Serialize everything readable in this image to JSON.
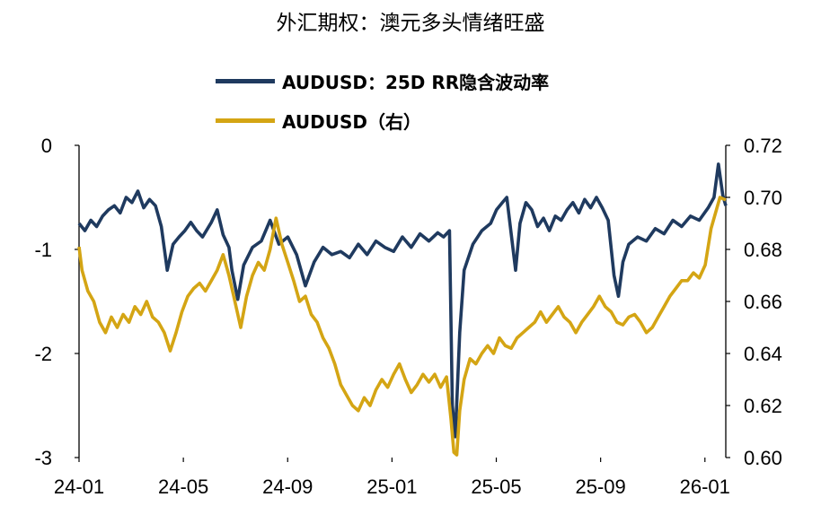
{
  "title": "外汇期权：澳元多头情绪旺盛",
  "legend": [
    {
      "label": "AUDUSD：25D RR隐含波动率",
      "color": "#1F3A5F"
    },
    {
      "label": "AUDUSD（右）",
      "color": "#D4A514"
    }
  ],
  "chart_data": {
    "type": "line",
    "left_axis": {
      "ticks": [
        "0",
        "-1",
        "-2",
        "-3"
      ],
      "ylim": [
        -3,
        0
      ]
    },
    "right_axis": {
      "ticks": [
        "0.72",
        "0.70",
        "0.68",
        "0.66",
        "0.64",
        "0.62",
        "0.60"
      ],
      "ylim": [
        0.6,
        0.72
      ]
    },
    "x_ticks": [
      "24-01",
      "24-05",
      "24-09",
      "25-01",
      "25-05",
      "25-09",
      "26-01"
    ],
    "series": [
      {
        "name": "AUDUSD：25D RR隐含波动率",
        "axis": "left",
        "color": "#1F3A5F",
        "points": [
          [
            0.0,
            -0.75
          ],
          [
            0.2,
            -0.82
          ],
          [
            0.4,
            -0.72
          ],
          [
            0.6,
            -0.78
          ],
          [
            0.8,
            -0.68
          ],
          [
            1.0,
            -0.62
          ],
          [
            1.2,
            -0.58
          ],
          [
            1.4,
            -0.65
          ],
          [
            1.6,
            -0.5
          ],
          [
            1.8,
            -0.55
          ],
          [
            2.0,
            -0.44
          ],
          [
            2.2,
            -0.6
          ],
          [
            2.4,
            -0.52
          ],
          [
            2.6,
            -0.58
          ],
          [
            2.8,
            -0.78
          ],
          [
            3.0,
            -1.2
          ],
          [
            3.2,
            -0.95
          ],
          [
            3.4,
            -0.88
          ],
          [
            3.6,
            -0.82
          ],
          [
            3.8,
            -0.74
          ],
          [
            4.0,
            -0.82
          ],
          [
            4.2,
            -0.88
          ],
          [
            4.5,
            -0.74
          ],
          [
            4.7,
            -0.62
          ],
          [
            4.9,
            -0.86
          ],
          [
            5.1,
            -0.98
          ],
          [
            5.2,
            -1.2
          ],
          [
            5.4,
            -1.48
          ],
          [
            5.6,
            -1.15
          ],
          [
            5.9,
            -0.98
          ],
          [
            6.2,
            -0.92
          ],
          [
            6.5,
            -0.72
          ],
          [
            6.8,
            -0.95
          ],
          [
            7.1,
            -0.88
          ],
          [
            7.4,
            -1.05
          ],
          [
            7.7,
            -1.35
          ],
          [
            8.0,
            -1.12
          ],
          [
            8.3,
            -0.98
          ],
          [
            8.6,
            -1.05
          ],
          [
            8.9,
            -1.02
          ],
          [
            9.2,
            -1.08
          ],
          [
            9.5,
            -0.95
          ],
          [
            9.8,
            -1.05
          ],
          [
            10.1,
            -0.92
          ],
          [
            10.4,
            -0.98
          ],
          [
            10.7,
            -1.02
          ],
          [
            11.0,
            -0.88
          ],
          [
            11.3,
            -0.98
          ],
          [
            11.6,
            -0.85
          ],
          [
            11.9,
            -0.92
          ],
          [
            12.2,
            -0.84
          ],
          [
            12.4,
            -0.88
          ],
          [
            12.6,
            -0.82
          ],
          [
            12.7,
            -2.5
          ],
          [
            12.8,
            -2.8
          ],
          [
            12.95,
            -1.8
          ],
          [
            13.1,
            -1.2
          ],
          [
            13.4,
            -0.95
          ],
          [
            13.7,
            -0.82
          ],
          [
            14.0,
            -0.75
          ],
          [
            14.2,
            -0.62
          ],
          [
            14.4,
            -0.55
          ],
          [
            14.55,
            -0.5
          ],
          [
            14.7,
            -0.85
          ],
          [
            14.85,
            -1.2
          ],
          [
            15.0,
            -0.75
          ],
          [
            15.2,
            -0.55
          ],
          [
            15.4,
            -0.62
          ],
          [
            15.6,
            -0.78
          ],
          [
            15.8,
            -0.7
          ],
          [
            16.0,
            -0.82
          ],
          [
            16.2,
            -0.68
          ],
          [
            16.4,
            -0.72
          ],
          [
            16.6,
            -0.62
          ],
          [
            16.8,
            -0.55
          ],
          [
            17.0,
            -0.65
          ],
          [
            17.2,
            -0.52
          ],
          [
            17.4,
            -0.6
          ],
          [
            17.6,
            -0.5
          ],
          [
            17.8,
            -0.6
          ],
          [
            18.0,
            -0.72
          ],
          [
            18.2,
            -1.25
          ],
          [
            18.35,
            -1.45
          ],
          [
            18.5,
            -1.12
          ],
          [
            18.7,
            -0.95
          ],
          [
            19.0,
            -0.88
          ],
          [
            19.3,
            -0.92
          ],
          [
            19.6,
            -0.8
          ],
          [
            19.9,
            -0.85
          ],
          [
            20.2,
            -0.72
          ],
          [
            20.5,
            -0.78
          ],
          [
            20.8,
            -0.68
          ],
          [
            21.1,
            -0.72
          ],
          [
            21.4,
            -0.6
          ],
          [
            21.6,
            -0.5
          ],
          [
            21.75,
            -0.18
          ],
          [
            21.9,
            -0.48
          ],
          [
            22.0,
            -0.58
          ]
        ]
      },
      {
        "name": "AUDUSD（右）",
        "axis": "right",
        "color": "#D4A514",
        "points": [
          [
            0.0,
            0.681
          ],
          [
            0.1,
            0.672
          ],
          [
            0.3,
            0.664
          ],
          [
            0.5,
            0.66
          ],
          [
            0.7,
            0.652
          ],
          [
            0.9,
            0.648
          ],
          [
            1.1,
            0.654
          ],
          [
            1.3,
            0.65
          ],
          [
            1.5,
            0.655
          ],
          [
            1.7,
            0.652
          ],
          [
            1.9,
            0.658
          ],
          [
            2.1,
            0.655
          ],
          [
            2.3,
            0.66
          ],
          [
            2.5,
            0.654
          ],
          [
            2.7,
            0.652
          ],
          [
            2.9,
            0.648
          ],
          [
            3.1,
            0.641
          ],
          [
            3.3,
            0.648
          ],
          [
            3.5,
            0.656
          ],
          [
            3.7,
            0.662
          ],
          [
            3.9,
            0.665
          ],
          [
            4.1,
            0.667
          ],
          [
            4.3,
            0.664
          ],
          [
            4.5,
            0.668
          ],
          [
            4.7,
            0.672
          ],
          [
            4.9,
            0.678
          ],
          [
            5.1,
            0.67
          ],
          [
            5.3,
            0.66
          ],
          [
            5.5,
            0.65
          ],
          [
            5.7,
            0.662
          ],
          [
            5.9,
            0.67
          ],
          [
            6.1,
            0.675
          ],
          [
            6.3,
            0.672
          ],
          [
            6.5,
            0.68
          ],
          [
            6.7,
            0.692
          ],
          [
            6.9,
            0.682
          ],
          [
            7.1,
            0.675
          ],
          [
            7.3,
            0.668
          ],
          [
            7.5,
            0.66
          ],
          [
            7.7,
            0.662
          ],
          [
            7.9,
            0.655
          ],
          [
            8.1,
            0.652
          ],
          [
            8.3,
            0.646
          ],
          [
            8.5,
            0.642
          ],
          [
            8.7,
            0.636
          ],
          [
            8.9,
            0.628
          ],
          [
            9.1,
            0.624
          ],
          [
            9.3,
            0.62
          ],
          [
            9.5,
            0.618
          ],
          [
            9.7,
            0.623
          ],
          [
            9.9,
            0.62
          ],
          [
            10.1,
            0.626
          ],
          [
            10.3,
            0.63
          ],
          [
            10.5,
            0.627
          ],
          [
            10.7,
            0.632
          ],
          [
            10.9,
            0.636
          ],
          [
            11.1,
            0.63
          ],
          [
            11.3,
            0.625
          ],
          [
            11.5,
            0.628
          ],
          [
            11.7,
            0.632
          ],
          [
            11.9,
            0.629
          ],
          [
            12.1,
            0.632
          ],
          [
            12.3,
            0.627
          ],
          [
            12.5,
            0.631
          ],
          [
            12.65,
            0.615
          ],
          [
            12.75,
            0.602
          ],
          [
            12.85,
            0.601
          ],
          [
            12.95,
            0.618
          ],
          [
            13.1,
            0.63
          ],
          [
            13.3,
            0.638
          ],
          [
            13.5,
            0.636
          ],
          [
            13.7,
            0.64
          ],
          [
            13.9,
            0.643
          ],
          [
            14.1,
            0.64
          ],
          [
            14.3,
            0.646
          ],
          [
            14.5,
            0.643
          ],
          [
            14.7,
            0.642
          ],
          [
            14.9,
            0.646
          ],
          [
            15.1,
            0.648
          ],
          [
            15.3,
            0.65
          ],
          [
            15.5,
            0.652
          ],
          [
            15.7,
            0.656
          ],
          [
            15.9,
            0.652
          ],
          [
            16.1,
            0.655
          ],
          [
            16.3,
            0.658
          ],
          [
            16.5,
            0.654
          ],
          [
            16.7,
            0.652
          ],
          [
            16.9,
            0.648
          ],
          [
            17.1,
            0.652
          ],
          [
            17.3,
            0.655
          ],
          [
            17.5,
            0.658
          ],
          [
            17.7,
            0.662
          ],
          [
            17.9,
            0.658
          ],
          [
            18.1,
            0.656
          ],
          [
            18.3,
            0.652
          ],
          [
            18.5,
            0.651
          ],
          [
            18.7,
            0.654
          ],
          [
            18.9,
            0.655
          ],
          [
            19.1,
            0.652
          ],
          [
            19.3,
            0.648
          ],
          [
            19.5,
            0.65
          ],
          [
            19.7,
            0.654
          ],
          [
            19.9,
            0.658
          ],
          [
            20.1,
            0.662
          ],
          [
            20.3,
            0.665
          ],
          [
            20.5,
            0.668
          ],
          [
            20.7,
            0.668
          ],
          [
            20.9,
            0.671
          ],
          [
            21.1,
            0.669
          ],
          [
            21.3,
            0.674
          ],
          [
            21.5,
            0.688
          ],
          [
            21.7,
            0.696
          ],
          [
            21.8,
            0.7
          ],
          [
            22.0,
            0.699
          ]
        ]
      }
    ]
  }
}
